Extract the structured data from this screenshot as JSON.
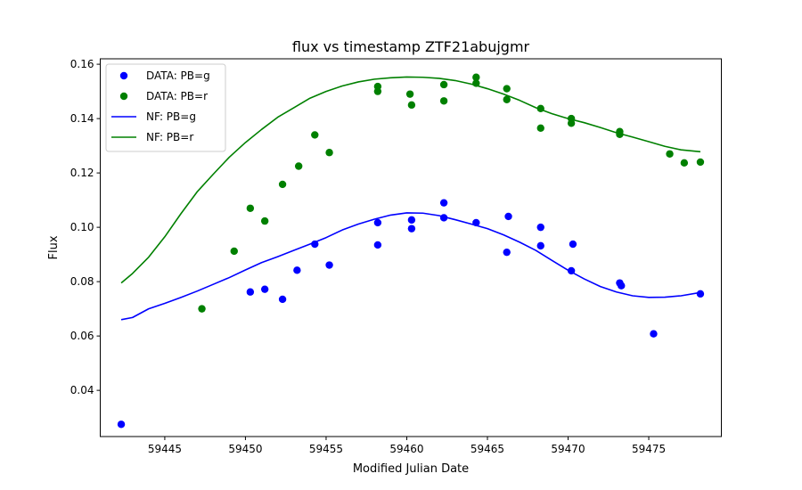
{
  "chart_data": {
    "type": "scatter",
    "title": "flux vs timestamp ZTF21abujgmr",
    "xlabel": "Modified Julian Date",
    "ylabel": "Flux",
    "xlim": [
      59441,
      59479.5
    ],
    "ylim": [
      0.023,
      0.162
    ],
    "xticks": [
      "59445",
      "59450",
      "59455",
      "59460",
      "59465",
      "59470",
      "59475"
    ],
    "xtick_values": [
      59445,
      59450,
      59455,
      59460,
      59465,
      59470,
      59475
    ],
    "yticks": [
      "0.04",
      "0.06",
      "0.08",
      "0.10",
      "0.12",
      "0.14",
      "0.16"
    ],
    "ytick_values": [
      0.04,
      0.06,
      0.08,
      0.1,
      0.12,
      0.14,
      0.16
    ],
    "grid": false,
    "legend_position": "top-left",
    "series": [
      {
        "name": "DATA: PB=g",
        "kind": "scatter",
        "color": "#0000ff",
        "points": [
          [
            59442.3,
            0.0275
          ],
          [
            59450.3,
            0.0762
          ],
          [
            59451.2,
            0.0772
          ],
          [
            59452.3,
            0.0735
          ],
          [
            59453.2,
            0.0842
          ],
          [
            59454.3,
            0.0938
          ],
          [
            59455.2,
            0.0861
          ],
          [
            59458.2,
            0.1017
          ],
          [
            59458.2,
            0.0935
          ],
          [
            59460.3,
            0.1027
          ],
          [
            59460.3,
            0.0995
          ],
          [
            59462.3,
            0.109
          ],
          [
            59462.3,
            0.1035
          ],
          [
            59464.3,
            0.1017
          ],
          [
            59466.3,
            0.104
          ],
          [
            59466.2,
            0.0908
          ],
          [
            59468.3,
            0.1
          ],
          [
            59468.3,
            0.0932
          ],
          [
            59470.3,
            0.0938
          ],
          [
            59470.2,
            0.084
          ],
          [
            59473.2,
            0.0795
          ],
          [
            59473.3,
            0.0785
          ],
          [
            59475.3,
            0.0608
          ],
          [
            59478.2,
            0.0755
          ]
        ]
      },
      {
        "name": "DATA: PB=r",
        "kind": "scatter",
        "color": "#008000",
        "points": [
          [
            59447.3,
            0.07
          ],
          [
            59449.3,
            0.0912
          ],
          [
            59450.3,
            0.107
          ],
          [
            59451.2,
            0.1023
          ],
          [
            59452.3,
            0.1158
          ],
          [
            59453.3,
            0.1225
          ],
          [
            59454.3,
            0.134
          ],
          [
            59455.2,
            0.1275
          ],
          [
            59458.2,
            0.1518
          ],
          [
            59458.2,
            0.15
          ],
          [
            59460.2,
            0.149
          ],
          [
            59460.3,
            0.145
          ],
          [
            59462.3,
            0.1525
          ],
          [
            59462.3,
            0.1465
          ],
          [
            59464.3,
            0.1552
          ],
          [
            59464.3,
            0.153
          ],
          [
            59466.2,
            0.151
          ],
          [
            59466.2,
            0.147
          ],
          [
            59468.3,
            0.1437
          ],
          [
            59468.3,
            0.1365
          ],
          [
            59470.2,
            0.14
          ],
          [
            59470.2,
            0.1383
          ],
          [
            59473.2,
            0.1352
          ],
          [
            59473.2,
            0.1342
          ],
          [
            59476.3,
            0.127
          ],
          [
            59477.2,
            0.1237
          ],
          [
            59478.2,
            0.124
          ]
        ]
      },
      {
        "name": "NF: PB=g",
        "kind": "line",
        "color": "#0000ff",
        "points": [
          [
            59442.3,
            0.066
          ],
          [
            59443,
            0.0668
          ],
          [
            59444,
            0.07
          ],
          [
            59445,
            0.072
          ],
          [
            59446,
            0.0742
          ],
          [
            59447,
            0.0765
          ],
          [
            59448,
            0.079
          ],
          [
            59449,
            0.0815
          ],
          [
            59450,
            0.0843
          ],
          [
            59451,
            0.087
          ],
          [
            59452,
            0.0892
          ],
          [
            59453,
            0.0915
          ],
          [
            59454,
            0.0938
          ],
          [
            59455,
            0.0962
          ],
          [
            59456,
            0.099
          ],
          [
            59457,
            0.1012
          ],
          [
            59458,
            0.103
          ],
          [
            59459,
            0.1045
          ],
          [
            59460,
            0.1053
          ],
          [
            59461,
            0.1052
          ],
          [
            59462,
            0.1043
          ],
          [
            59463,
            0.1028
          ],
          [
            59464,
            0.1012
          ],
          [
            59465,
            0.0995
          ],
          [
            59466,
            0.0972
          ],
          [
            59467,
            0.0945
          ],
          [
            59468,
            0.0915
          ],
          [
            59469,
            0.0878
          ],
          [
            59470,
            0.0842
          ],
          [
            59471,
            0.081
          ],
          [
            59472,
            0.0782
          ],
          [
            59473,
            0.0762
          ],
          [
            59474,
            0.0748
          ],
          [
            59475,
            0.0742
          ],
          [
            59476,
            0.0743
          ],
          [
            59477,
            0.0748
          ],
          [
            59478.2,
            0.076
          ]
        ]
      },
      {
        "name": "NF: PB=r",
        "kind": "line",
        "color": "#008000",
        "points": [
          [
            59442.3,
            0.0795
          ],
          [
            59443,
            0.083
          ],
          [
            59444,
            0.089
          ],
          [
            59445,
            0.0965
          ],
          [
            59446,
            0.105
          ],
          [
            59447,
            0.113
          ],
          [
            59448,
            0.1195
          ],
          [
            59449,
            0.1258
          ],
          [
            59450,
            0.1312
          ],
          [
            59451,
            0.136
          ],
          [
            59452,
            0.1405
          ],
          [
            59453,
            0.144
          ],
          [
            59454,
            0.1475
          ],
          [
            59455,
            0.15
          ],
          [
            59456,
            0.152
          ],
          [
            59457,
            0.1535
          ],
          [
            59458,
            0.1545
          ],
          [
            59459,
            0.155
          ],
          [
            59460,
            0.1553
          ],
          [
            59461,
            0.1552
          ],
          [
            59462,
            0.1548
          ],
          [
            59463,
            0.154
          ],
          [
            59464,
            0.1527
          ],
          [
            59465,
            0.151
          ],
          [
            59466,
            0.149
          ],
          [
            59467,
            0.1467
          ],
          [
            59468,
            0.144
          ],
          [
            59469,
            0.1418
          ],
          [
            59470,
            0.14
          ],
          [
            59471,
            0.1385
          ],
          [
            59472,
            0.1367
          ],
          [
            59473,
            0.1348
          ],
          [
            59474,
            0.1332
          ],
          [
            59475,
            0.1315
          ],
          [
            59476,
            0.1298
          ],
          [
            59477,
            0.1285
          ],
          [
            59478.2,
            0.1278
          ]
        ]
      }
    ]
  }
}
